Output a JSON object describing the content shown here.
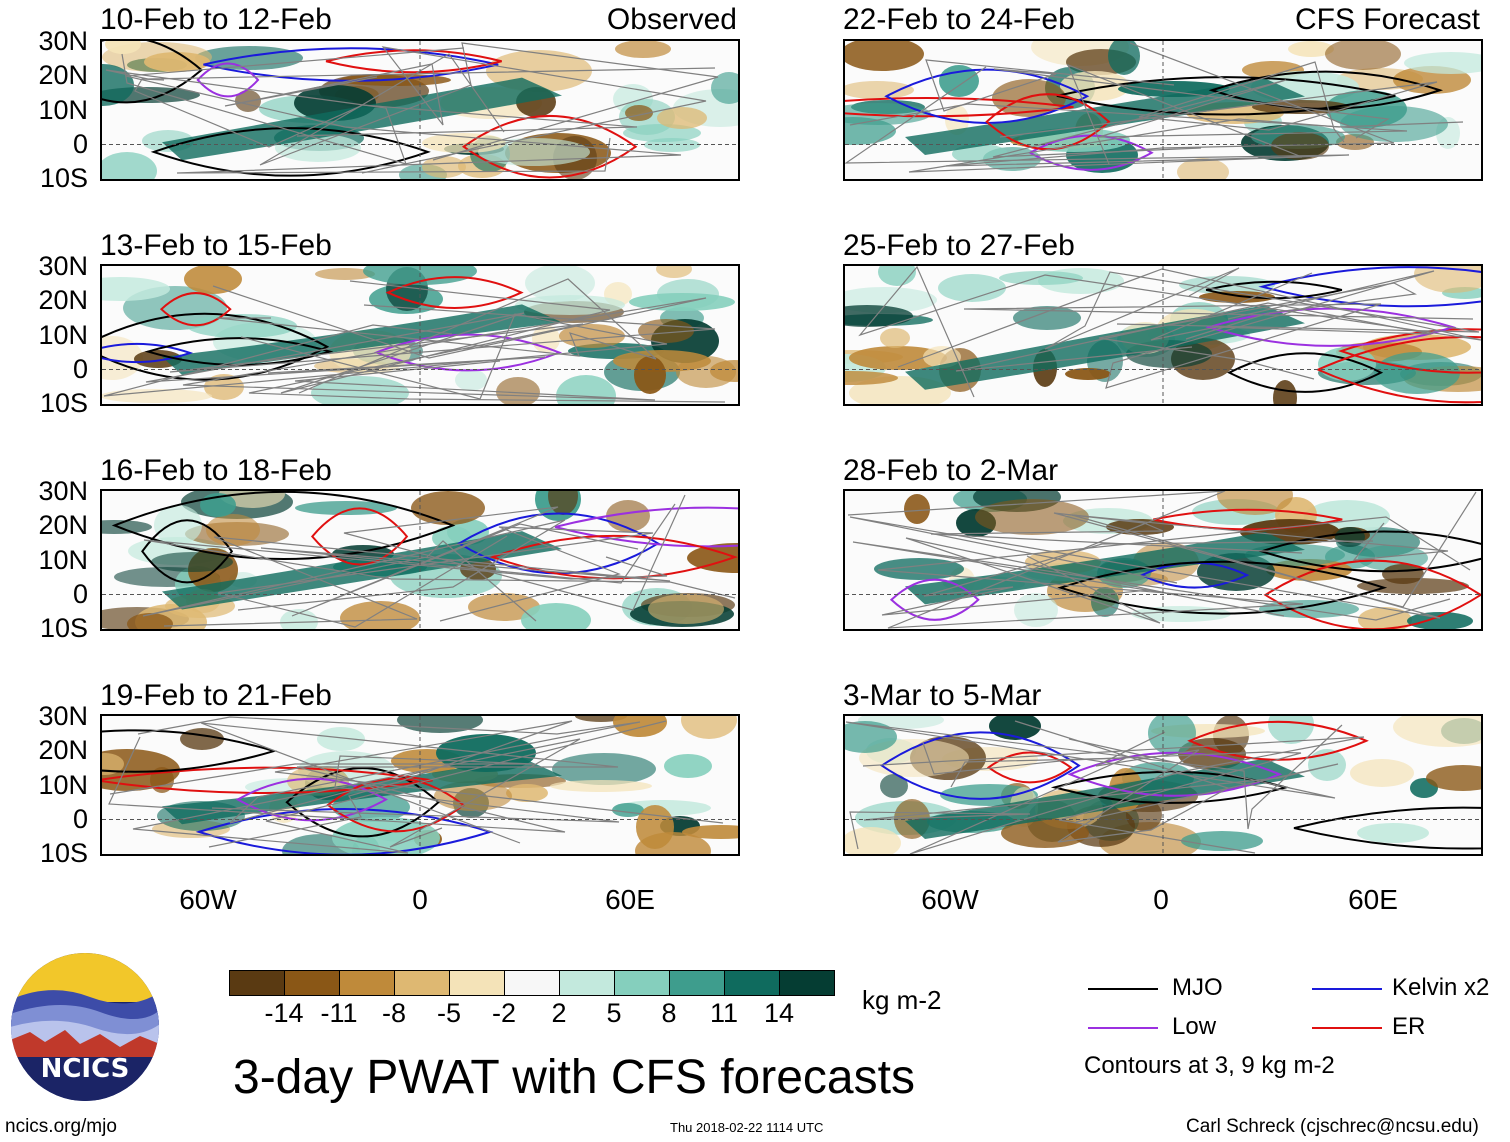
{
  "panels": [
    {
      "title": "10-Feb to 12-Feb",
      "label": "Observed"
    },
    {
      "title": "22-Feb to 24-Feb",
      "label": "CFS Forecast"
    },
    {
      "title": "13-Feb to 15-Feb",
      "label": ""
    },
    {
      "title": "25-Feb to 27-Feb",
      "label": ""
    },
    {
      "title": "16-Feb to 18-Feb",
      "label": ""
    },
    {
      "title": "28-Feb to 2-Mar",
      "label": ""
    },
    {
      "title": "19-Feb to 21-Feb",
      "label": ""
    },
    {
      "title": "3-Mar to 5-Mar",
      "label": ""
    }
  ],
  "lat_ticks": [
    "30N",
    "20N",
    "10N",
    "0",
    "10S"
  ],
  "lon_ticks": [
    "60W",
    "0",
    "60E"
  ],
  "colorbar": {
    "colors": [
      "#5a3a12",
      "#8a5716",
      "#bf8a3a",
      "#deb872",
      "#f4e3b8",
      "#f7f7f7",
      "#c3e9dd",
      "#85cfbd",
      "#3e9d8d",
      "#0f6b5e",
      "#053d33"
    ],
    "labels": [
      "-14",
      "-11",
      "-8",
      "-5",
      "-2",
      "2",
      "5",
      "8",
      "11",
      "14"
    ],
    "units": "kg m-2"
  },
  "legend": {
    "items": [
      {
        "label": "MJO",
        "color": "#000000"
      },
      {
        "label": "Kelvin x2",
        "color": "#1a1adb"
      },
      {
        "label": "Low",
        "color": "#9b30e0"
      },
      {
        "label": "ER",
        "color": "#e01010"
      }
    ],
    "contours_note": "Contours at 3, 9 kg m-2"
  },
  "logo_text": "NCICS",
  "main_title": "3-day PWAT with CFS forecasts",
  "footer": {
    "left": "ncics.org/mjo",
    "center": "Thu 2018-02-22 1114 UTC",
    "right": "Carl Schreck (cjschrec@ncsu.edu)"
  }
}
